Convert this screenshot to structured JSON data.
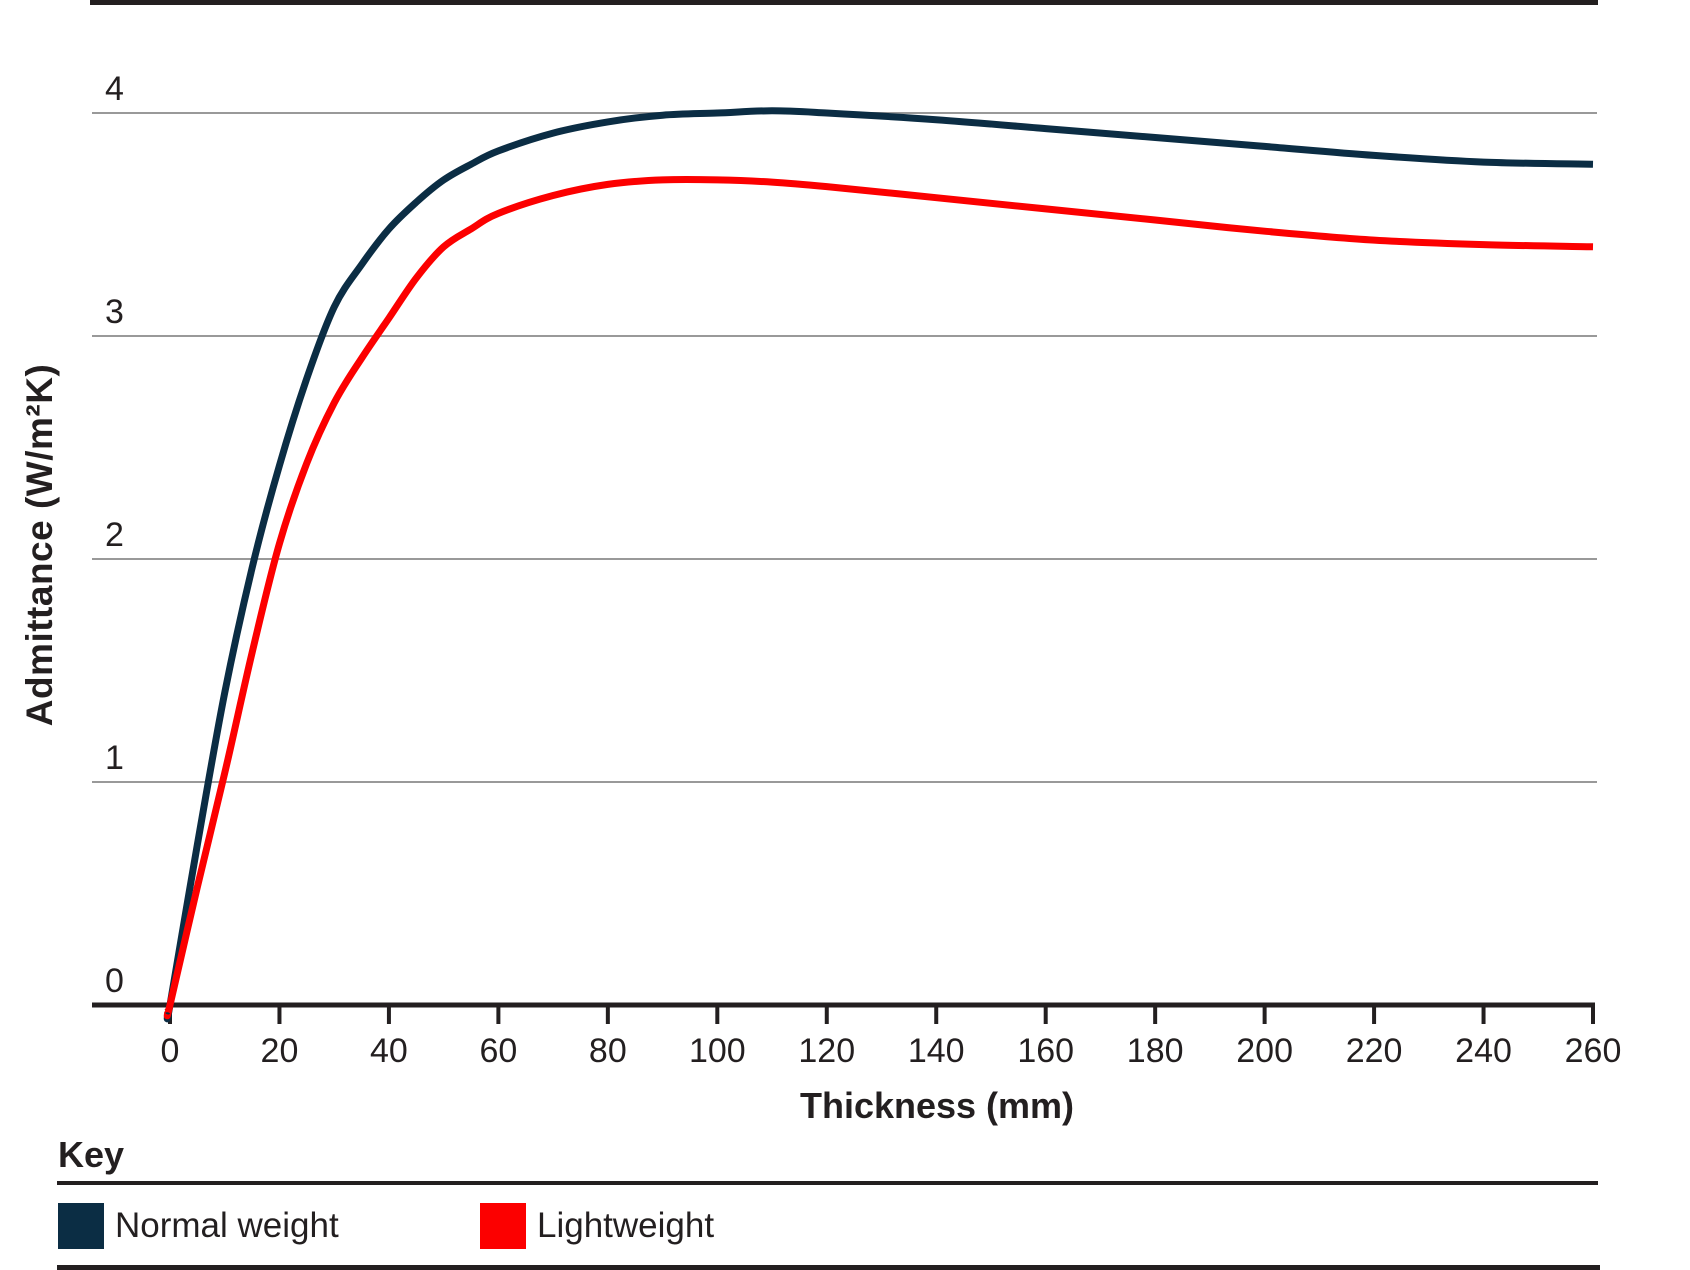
{
  "chart_data": {
    "type": "line",
    "title": "",
    "xlabel": "Thickness (mm)",
    "ylabel": "Admittance (W/m²K)",
    "xlim": [
      0,
      260
    ],
    "ylim": [
      0,
      4
    ],
    "xticks": [
      0,
      20,
      40,
      60,
      80,
      100,
      120,
      140,
      160,
      180,
      200,
      220,
      240,
      260
    ],
    "yticks": [
      0,
      1,
      2,
      3,
      4
    ],
    "grid": "horizontal gridlines at y=1,2,3,4; black baseline at y=0; no vertical axis line",
    "legend_position": "bottom key panel",
    "x": [
      0,
      5,
      10,
      15,
      20,
      25,
      30,
      35,
      40,
      45,
      50,
      55,
      60,
      70,
      80,
      90,
      100,
      110,
      120,
      140,
      160,
      180,
      200,
      220,
      240,
      260
    ],
    "series": [
      {
        "name": "Normal weight",
        "color": "#0b2d44",
        "values": [
          0,
          0.72,
          1.4,
          1.96,
          2.42,
          2.81,
          3.13,
          3.32,
          3.48,
          3.6,
          3.7,
          3.77,
          3.83,
          3.91,
          3.96,
          3.99,
          4.0,
          4.01,
          4.0,
          3.97,
          3.93,
          3.89,
          3.85,
          3.81,
          3.78,
          3.77
        ]
      },
      {
        "name": "Lightweight",
        "color": "#fc0000",
        "values": [
          0,
          0.53,
          1.04,
          1.58,
          2.07,
          2.43,
          2.7,
          2.9,
          3.08,
          3.26,
          3.4,
          3.48,
          3.55,
          3.63,
          3.68,
          3.7,
          3.7,
          3.69,
          3.67,
          3.62,
          3.57,
          3.52,
          3.47,
          3.43,
          3.41,
          3.4
        ]
      }
    ],
    "colors": {
      "grid": "#999999",
      "axis": "#231f20",
      "text": "#231f20",
      "background": "#ffffff"
    }
  },
  "legend": {
    "title": "Key",
    "items": [
      {
        "label": "Normal weight",
        "color": "#0b2d44"
      },
      {
        "label": "Lightweight",
        "color": "#fc0000"
      }
    ]
  }
}
